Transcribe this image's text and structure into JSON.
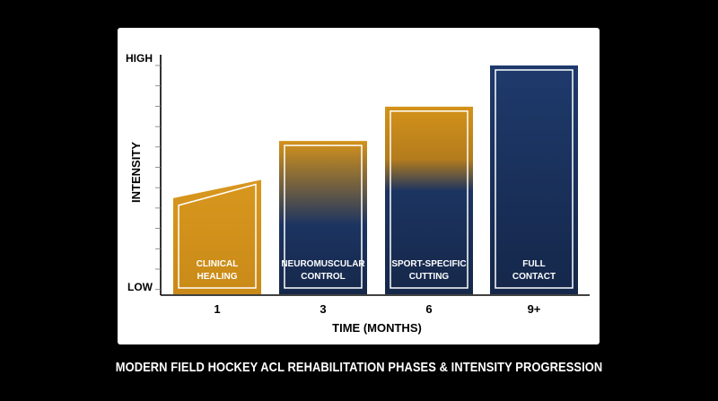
{
  "caption": "MODERN FIELD HOCKEY ACL REHABILITATION PHASES & INTENSITY PROGRESSION",
  "colors": {
    "gold": "#d4921a",
    "navy": "#1c3461",
    "axis": "#000000",
    "background": "#000000",
    "card": "#ffffff"
  },
  "chart_data": {
    "type": "bar",
    "title": "",
    "xlabel": "TIME (MONTHS)",
    "ylabel": "INTENSITY",
    "y_tick_labels": {
      "low": "LOW",
      "high": "HIGH"
    },
    "ylim": [
      0,
      100
    ],
    "grid": false,
    "categories": [
      "1",
      "3",
      "6",
      "9+"
    ],
    "phases": [
      {
        "category": "1",
        "label_lines": [
          "CLINICAL",
          "HEALING"
        ],
        "value_start": 42,
        "value_end": 50,
        "fill": "gold"
      },
      {
        "category": "3",
        "label_lines": [
          "NEUROMUSCULAR",
          "CONTROL"
        ],
        "value": 67,
        "fill": "gold-to-navy"
      },
      {
        "category": "6",
        "label_lines": [
          "SPORT-SPECIFIC",
          "CUTTING"
        ],
        "value": 82,
        "fill": "gold-to-navy"
      },
      {
        "category": "9+",
        "label_lines": [
          "FULL",
          "CONTACT"
        ],
        "value": 100,
        "fill": "navy"
      }
    ]
  }
}
